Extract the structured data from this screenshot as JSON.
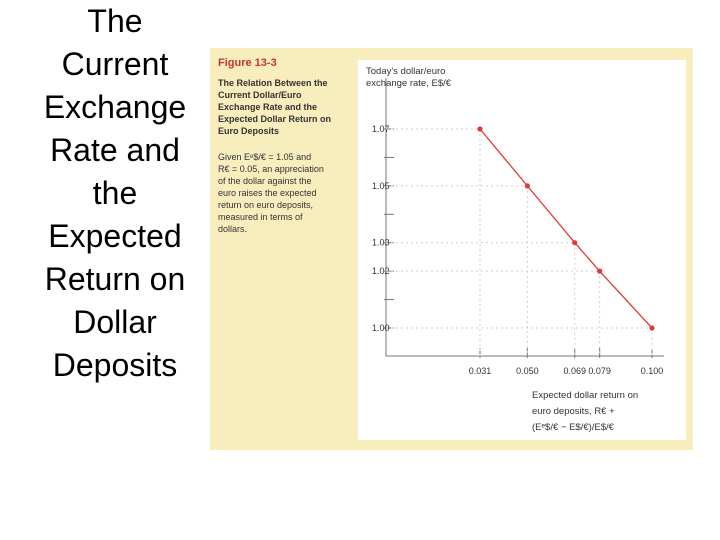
{
  "slide": {
    "title": "The\nCurrent\nExchange\nRate and\nthe\nExpected\nReturn on\nDollar\nDeposits"
  },
  "figure": {
    "label": "Figure 13-3",
    "title": "The Relation Between the\nCurrent Dollar/Euro\nExchange Rate and the\nExpected Dollar Return on\nEuro Deposits",
    "caption": "Given Eᵉ$/€ = 1.05 and\nR€ = 0.05, an appreciation\nof the dollar against the\neuro raises the expected\nreturn on euro deposits,\nmeasured in terms of\ndollars."
  },
  "chart_data": {
    "type": "line",
    "ylabel": [
      "Today's dollar/euro",
      "exchange rate, E$/€"
    ],
    "xlabel": [
      "Expected dollar return on",
      "euro deposits, R€ +",
      "(Eᵉ$/€ − E$/€)/E$/€"
    ],
    "x": [
      0.031,
      0.05,
      0.069,
      0.079,
      0.1
    ],
    "x_tick_labels": [
      "0.031",
      "0.050",
      "0.069",
      "0.079",
      "0.100"
    ],
    "y": [
      1.07,
      1.05,
      1.03,
      1.02,
      1.0
    ],
    "y_tick_labels": [
      "1.07",
      "1.05",
      "1.03",
      "1.02",
      "1.00"
    ],
    "xlim": [
      0.031,
      0.1
    ],
    "ylim": [
      1.0,
      1.07
    ],
    "grid": false,
    "colors": {
      "line": "#e03a3a",
      "axis": "#777777"
    }
  }
}
